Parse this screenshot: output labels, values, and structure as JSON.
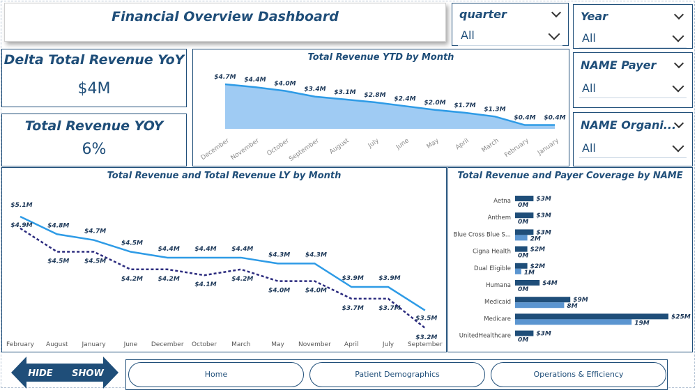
{
  "dashboard": {
    "title": "Financial Overview Dashboard",
    "colors": {
      "primary": "#1f4e79",
      "accent": "#2e9be6",
      "fill": "#9fcbf3",
      "ly": "#2b2b7e",
      "secondary": "#5b95d0"
    }
  },
  "kpis": {
    "delta_label": "Delta Total Revenue YoY",
    "delta_value": "$4M",
    "yoy_label": "Total Revenue YOY",
    "yoy_value": "6%"
  },
  "slicers": {
    "quarter": {
      "label": "quarter",
      "value": "All"
    },
    "year": {
      "label": "Year",
      "value": "All"
    },
    "payer": {
      "label": "NAME Payer",
      "value": "All"
    },
    "organization": {
      "label": "NAME Organi...",
      "value": "All"
    }
  },
  "charts": {
    "ytd_title": "Total Revenue YTD by Month",
    "monthly_title": "Total Revenue and Total Revenue LY by Month",
    "payer_title": "Total Revenue and Payer Coverage by NAME"
  },
  "chart_data": [
    {
      "type": "area",
      "title": "Total Revenue YTD by Month",
      "categories": [
        "December",
        "November",
        "October",
        "September",
        "August",
        "July",
        "June",
        "May",
        "April",
        "March",
        "February",
        "January"
      ],
      "values": [
        4.7,
        4.4,
        4.0,
        3.4,
        3.1,
        2.8,
        2.4,
        2.0,
        1.7,
        1.3,
        0.4,
        0.4
      ],
      "labels": [
        "$4.7M",
        "$4.4M",
        "$4.0M",
        "$3.4M",
        "$3.1M",
        "$2.8M",
        "$2.4M",
        "$2.0M",
        "$1.7M",
        "$1.3M",
        "$0.4M",
        "$0.4M"
      ]
    },
    {
      "type": "line",
      "title": "Total Revenue and Total Revenue LY by Month",
      "categories": [
        "February",
        "August",
        "January",
        "June",
        "December",
        "October",
        "March",
        "May",
        "November",
        "April",
        "July",
        "September"
      ],
      "series": [
        {
          "name": "Total Revenue",
          "values": [
            5.1,
            4.8,
            4.7,
            4.5,
            4.4,
            4.4,
            4.4,
            4.3,
            4.3,
            3.9,
            3.9,
            3.5
          ],
          "labels": [
            "$5.1M",
            "$4.8M",
            "$4.7M",
            "$4.5M",
            "$4.4M",
            "$4.4M",
            "$4.4M",
            "$4.3M",
            "$4.3M",
            "$3.9M",
            "$3.9M",
            "$3.5M"
          ]
        },
        {
          "name": "Total Revenue LY",
          "values": [
            4.9,
            4.5,
            4.5,
            4.2,
            4.2,
            4.1,
            4.2,
            4.0,
            4.0,
            3.7,
            3.7,
            3.2
          ],
          "labels": [
            "$4.9M",
            "$4.5M",
            "$4.5M",
            "$4.2M",
            "$4.2M",
            "$4.1M",
            "$4.2M",
            "$4.0M",
            "$4.0M",
            "$3.7M",
            "$3.7M",
            "$3.2M"
          ]
        }
      ]
    },
    {
      "type": "bar",
      "title": "Total Revenue and Payer Coverage by NAME",
      "categories": [
        "Aetna",
        "Anthem",
        "Blue Cross Blue S...",
        "Cigna Health",
        "Dual Eligible",
        "Humana",
        "Medicaid",
        "Medicare",
        "UnitedHealthcare"
      ],
      "series": [
        {
          "name": "Total Revenue",
          "values": [
            3,
            3,
            3,
            2,
            2,
            4,
            9,
            25,
            3
          ],
          "labels": [
            "$3M",
            "$3M",
            "$3M",
            "$2M",
            "$2M",
            "$4M",
            "$9M",
            "$25M",
            "$3M"
          ]
        },
        {
          "name": "Payer Coverage",
          "values": [
            0,
            0,
            2,
            0,
            1,
            0,
            8,
            19,
            0
          ],
          "labels": [
            "0M",
            "0M",
            "2M",
            "0M",
            "1M",
            "0M",
            "8M",
            "19M",
            "0M"
          ]
        }
      ]
    }
  ],
  "navigation": {
    "hide_label": "HIDE",
    "show_label": "SHOW",
    "tabs": [
      "Home",
      "Patient Demographics",
      "Operations & Efficiency"
    ]
  }
}
